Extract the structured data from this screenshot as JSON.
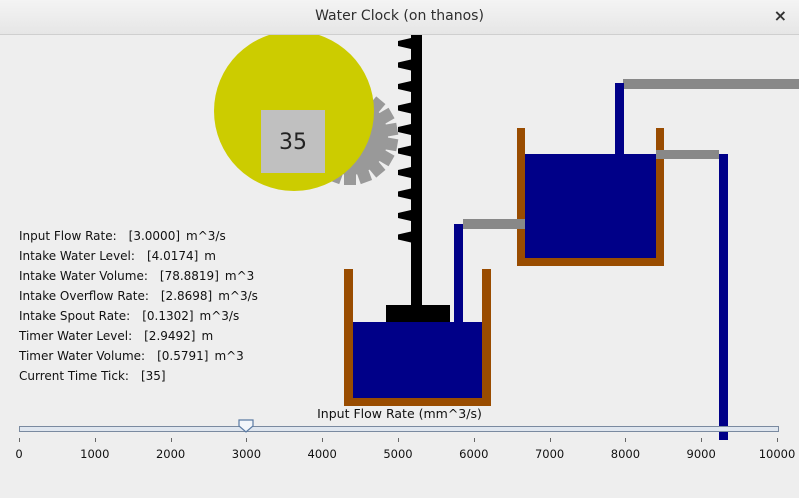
{
  "window": {
    "title": "Water Clock (on thanos)",
    "close_glyph": "×"
  },
  "clock": {
    "value": "35",
    "face_color": "#cccc00",
    "gear_color": "#999999"
  },
  "colors": {
    "water": "#000088",
    "tank": "#994c00",
    "pipe": "#888888",
    "rack": "#000000"
  },
  "readouts": [
    {
      "label": "Input Flow Rate:",
      "value": "[3.0000]",
      "unit": "m^3/s"
    },
    {
      "label": "Intake Water Level:",
      "value": "[4.0174]",
      "unit": "m"
    },
    {
      "label": "Intake Water Volume:",
      "value": "[78.8819]",
      "unit": "m^3"
    },
    {
      "label": "Intake Overflow Rate:",
      "value": "[2.8698]",
      "unit": "m^3/s"
    },
    {
      "label": "Intake Spout Rate:",
      "value": "[0.1302]",
      "unit": "m^3/s"
    },
    {
      "label": "Timer Water Level:",
      "value": "[2.9492]",
      "unit": "m"
    },
    {
      "label": "Timer Water Volume:",
      "value": "[0.5791]",
      "unit": "m^3"
    },
    {
      "label": "Current Time Tick:",
      "value": "[35]",
      "unit": ""
    }
  ],
  "slider": {
    "label": "Input Flow Rate (mm^3/s)",
    "min": 0,
    "max": 10000,
    "value": 3000,
    "ticks": [
      "0",
      "1000",
      "2000",
      "3000",
      "4000",
      "5000",
      "6000",
      "7000",
      "8000",
      "9000",
      "10000"
    ]
  }
}
